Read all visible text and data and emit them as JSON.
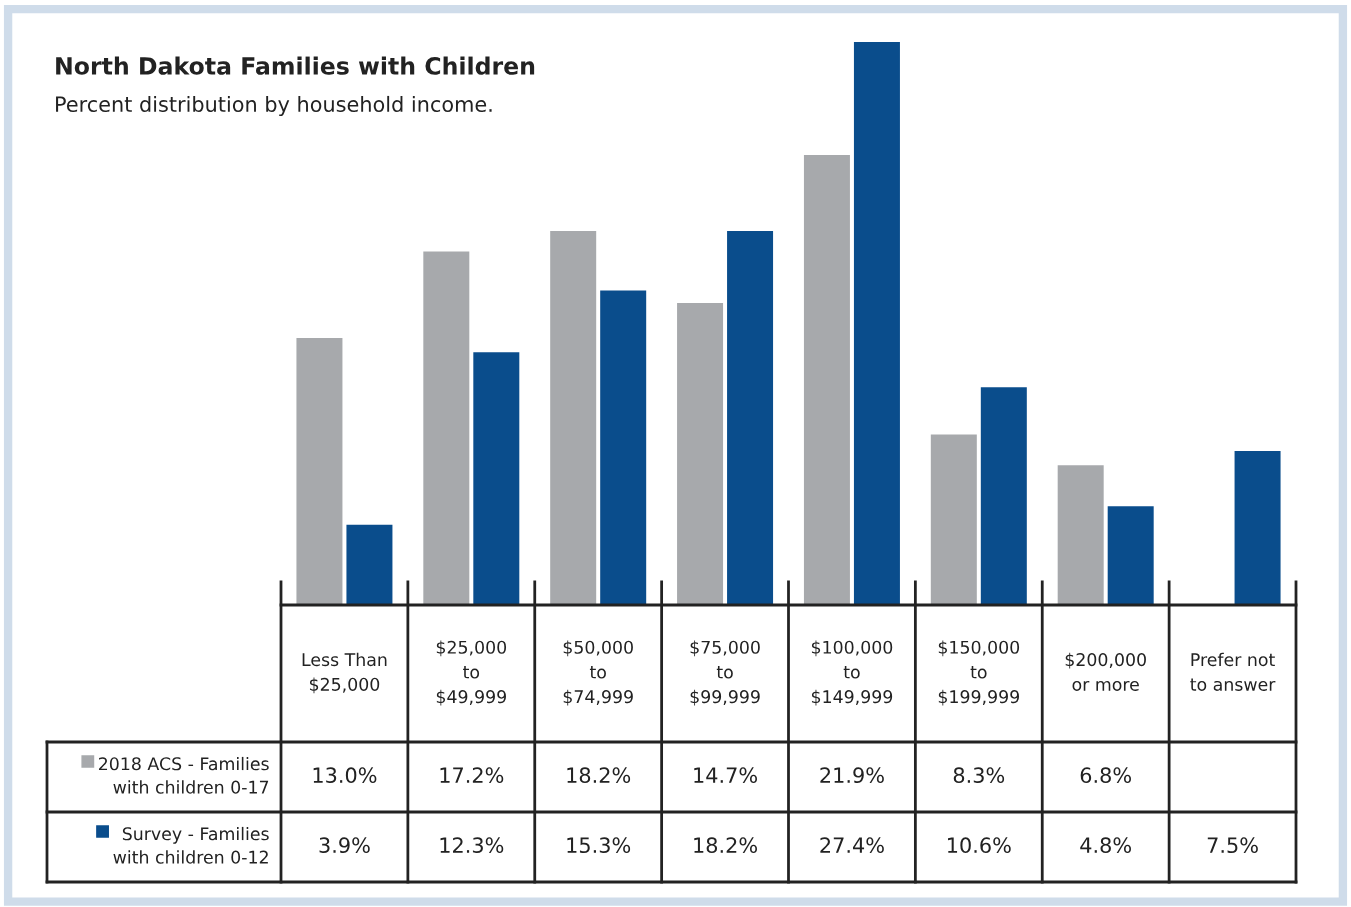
{
  "chart_data": {
    "type": "bar",
    "title": "North Dakota Families with Children",
    "subtitle": "Percent distribution by household income.",
    "categories": [
      "Less Than\n$25,000",
      "$25,000\nto\n$49,999",
      "$50,000\nto\n$74,999",
      "$75,000\nto\n$99,999",
      "$100,000\nto\n$149,999",
      "$150,000\nto\n$199,999",
      "$200,000\nor more",
      "Prefer not\nto answer"
    ],
    "series": [
      {
        "name": "2018 ACS - Families\nwith children 0-17",
        "color": "#a7a9ac",
        "values": [
          13.0,
          17.2,
          18.2,
          14.7,
          21.9,
          8.3,
          6.8,
          null
        ],
        "value_labels": [
          "13.0%",
          "17.2%",
          "18.2%",
          "14.7%",
          "21.9%",
          "8.3%",
          "6.8%",
          null
        ]
      },
      {
        "name": "Survey - Families\nwith children 0-12",
        "color": "#0a4d8c",
        "values": [
          3.9,
          12.3,
          15.3,
          18.2,
          27.4,
          10.6,
          4.8,
          7.5
        ],
        "value_labels": [
          "3.9%",
          "12.3%",
          "15.3%",
          "18.2%",
          "27.4%",
          "10.6%",
          "4.8%",
          "7.5%"
        ]
      }
    ],
    "legend": "bottom left"
  }
}
